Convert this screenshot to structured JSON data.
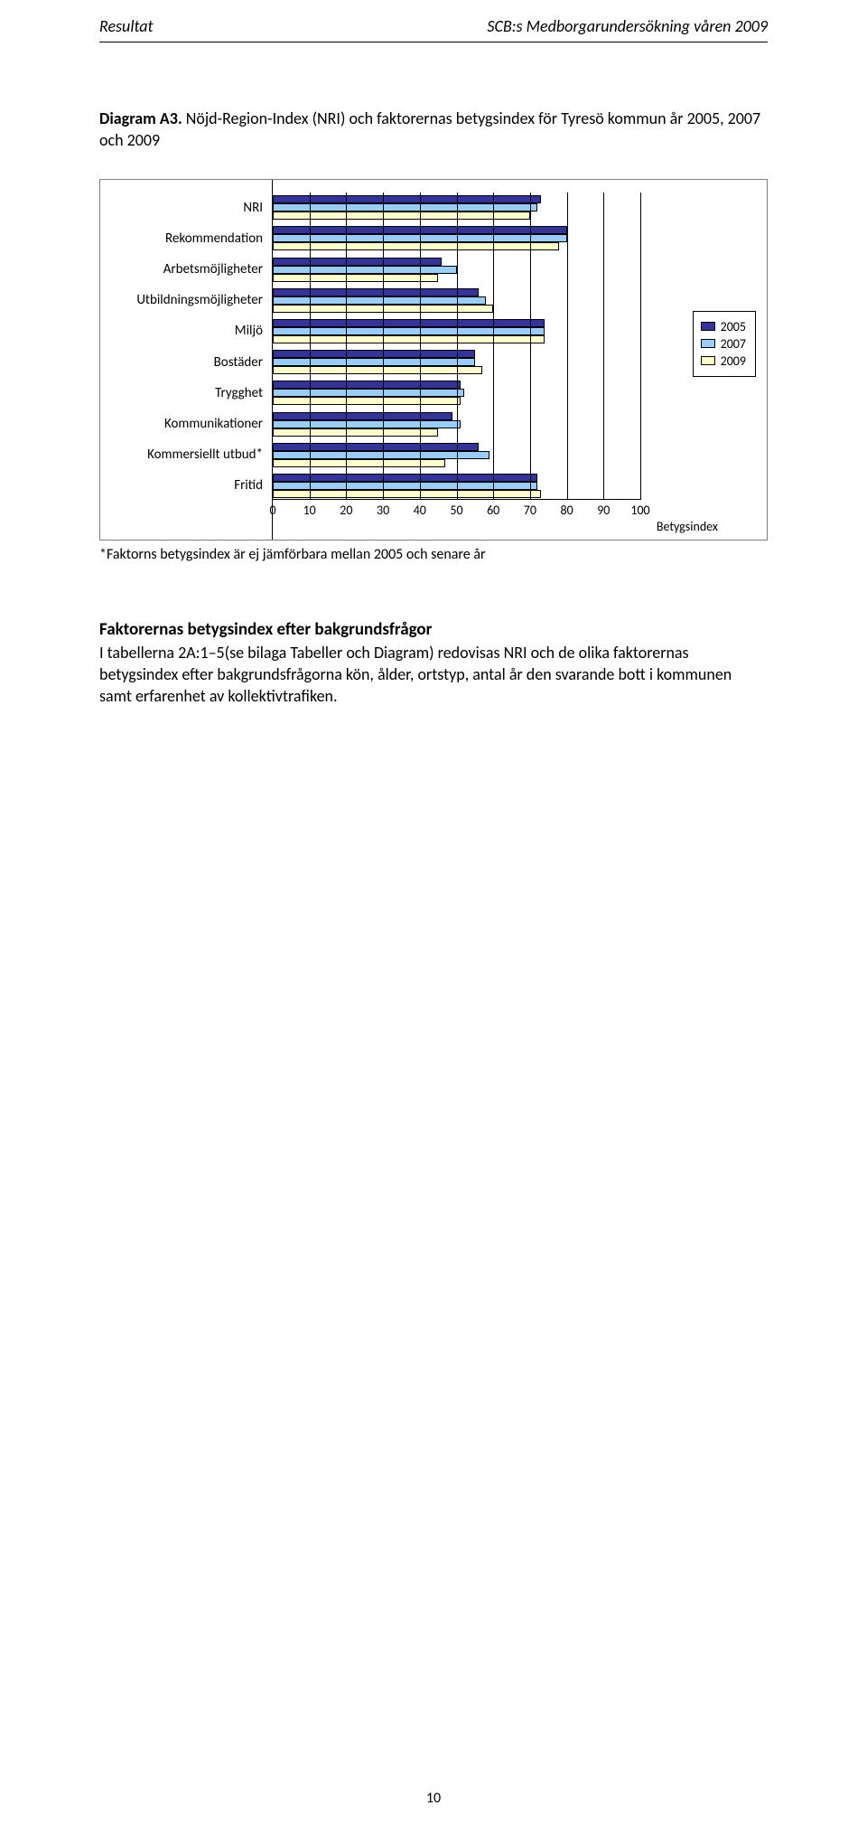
{
  "header": {
    "left": "Resultat",
    "right": "SCB:s Medborgarundersökning våren 2009"
  },
  "diagram": {
    "label_prefix": "Diagram A3.",
    "title_rest": " Nöjd-Region-Index (NRI) och faktorernas betygsindex för Tyresö kommun år 2005, 2007 och 2009"
  },
  "chart": {
    "categories": [
      "NRI",
      "Rekommendation",
      "Arbetsmöjligheter",
      "Utbildningsmöjligheter",
      "Miljö",
      "Bostäder",
      "Trygghet",
      "Kommunikationer",
      "Kommersiellt utbud*",
      "Fritid"
    ],
    "series": [
      {
        "name": "2005",
        "color": "#333399",
        "values": [
          73,
          80,
          46,
          56,
          74,
          55,
          51,
          49,
          56,
          72
        ]
      },
      {
        "name": "2007",
        "color": "#99ccff",
        "values": [
          72,
          80,
          50,
          58,
          74,
          55,
          52,
          51,
          59,
          72
        ]
      },
      {
        "name": "2009",
        "color": "#ffffcc",
        "values": [
          70,
          78,
          45,
          60,
          74,
          57,
          51,
          45,
          47,
          73
        ]
      }
    ],
    "xmin": 0,
    "xmax": 100,
    "xtick_step": 10,
    "xlabel": "Betygsindex",
    "background": "#ffffff",
    "border_color": "#808080",
    "bar_border": "#000000"
  },
  "footnote": "*Faktorns betygsindex är ej jämförbara mellan 2005 och senare år",
  "section": {
    "title": "Faktorernas betygsindex efter bakgrundsfrågor",
    "body": "I tabellerna 2A:1–5(se bilaga Tabeller och Diagram) redovisas NRI och de olika faktorernas betygsindex efter bakgrundsfrågorna kön, ålder, ortstyp, antal år den svarande bott i kommunen samt erfarenhet av kollektivtrafiken."
  },
  "page_number": "10"
}
